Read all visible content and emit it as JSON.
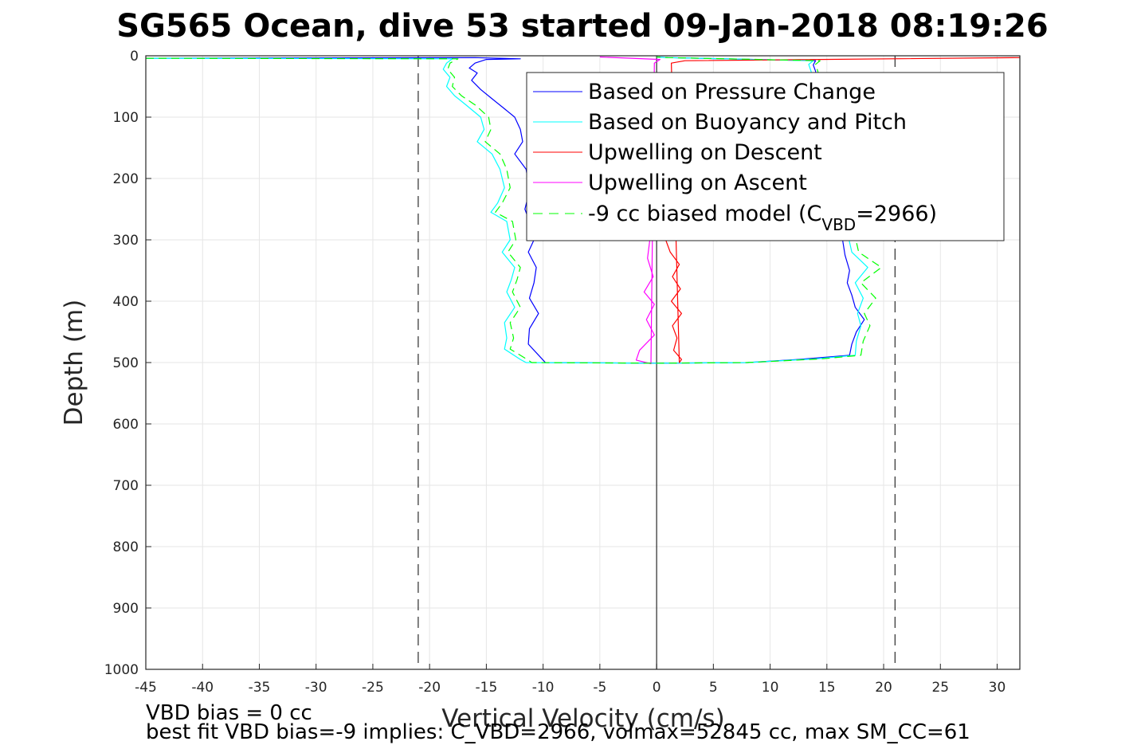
{
  "chart_data": {
    "type": "line",
    "title": "SG565 Ocean, dive 53 started 09-Jan-2018 08:19:26",
    "xlabel": "Vertical Velocity (cm/s)",
    "ylabel": "Depth (m)",
    "xlim": [
      -45,
      32
    ],
    "ylim": [
      1000,
      0
    ],
    "y_reversed": true,
    "grid": true,
    "xticks": [
      -45,
      -40,
      -35,
      -30,
      -25,
      -20,
      -15,
      -10,
      -5,
      0,
      5,
      10,
      15,
      20,
      25,
      30
    ],
    "yticks": [
      0,
      100,
      200,
      300,
      400,
      500,
      600,
      700,
      800,
      900,
      1000
    ],
    "xtick_labels": [
      "-45",
      "-40",
      "-35",
      "-30",
      "-25",
      "-20",
      "-15",
      "-10",
      "-5",
      "0",
      "5",
      "10",
      "15",
      "20",
      "25",
      "30"
    ],
    "ytick_labels": [
      "0",
      "100",
      "200",
      "300",
      "400",
      "500",
      "600",
      "700",
      "800",
      "900",
      "1000"
    ],
    "legend_position": "top-right",
    "reference_lines": {
      "vertical_dashed_x": [
        -21,
        21
      ],
      "vertical_solid_x": [
        0
      ],
      "color": "#000000"
    },
    "series": [
      {
        "name": "Based on Pressure Change",
        "color": "#0000ff",
        "style": "solid",
        "points": [
          [
            -45,
            4
          ],
          [
            -16,
            3
          ],
          [
            -12,
            5
          ],
          [
            -15,
            6
          ],
          [
            -16,
            12
          ],
          [
            -16.5,
            20
          ],
          [
            -15.8,
            28
          ],
          [
            -16.3,
            40
          ],
          [
            -15.5,
            55
          ],
          [
            -14.5,
            70
          ],
          [
            -13.5,
            85
          ],
          [
            -12.5,
            100
          ],
          [
            -12,
            120
          ],
          [
            -11.8,
            140
          ],
          [
            -12.5,
            160
          ],
          [
            -11.5,
            185
          ],
          [
            -11.2,
            220
          ],
          [
            -11.6,
            250
          ],
          [
            -11.2,
            270
          ],
          [
            -10.8,
            300
          ],
          [
            -11.3,
            320
          ],
          [
            -10.6,
            345
          ],
          [
            -10.8,
            370
          ],
          [
            -11.2,
            395
          ],
          [
            -10.4,
            420
          ],
          [
            -11.2,
            445
          ],
          [
            -11.3,
            470
          ],
          [
            -10.2,
            492
          ],
          [
            -9.8,
            500
          ],
          [
            0,
            501
          ],
          [
            8,
            500
          ],
          [
            12.5,
            495
          ],
          [
            17,
            488
          ],
          [
            17.2,
            470
          ],
          [
            17.6,
            450
          ],
          [
            18.3,
            430
          ],
          [
            17.5,
            410
          ],
          [
            17.2,
            390
          ],
          [
            16.8,
            370
          ],
          [
            17.0,
            350
          ],
          [
            16.6,
            325
          ],
          [
            14,
            25
          ],
          [
            13.8,
            15
          ],
          [
            14,
            8
          ],
          [
            1,
            3
          ],
          [
            0,
            2
          ]
        ]
      },
      {
        "name": "Based on Buoyancy and Pitch",
        "color": "#00ffff",
        "style": "solid",
        "points": [
          [
            -45,
            4
          ],
          [
            -18,
            5
          ],
          [
            -18.5,
            12
          ],
          [
            -18.8,
            22
          ],
          [
            -18.2,
            35
          ],
          [
            -18.5,
            50
          ],
          [
            -17.8,
            65
          ],
          [
            -16.8,
            80
          ],
          [
            -15.5,
            100
          ],
          [
            -15.2,
            120
          ],
          [
            -15.8,
            140
          ],
          [
            -14.5,
            160
          ],
          [
            -13.8,
            185
          ],
          [
            -13.4,
            215
          ],
          [
            -14.0,
            240
          ],
          [
            -14.6,
            255
          ],
          [
            -13.2,
            270
          ],
          [
            -12.9,
            300
          ],
          [
            -13.6,
            320
          ],
          [
            -12.5,
            345
          ],
          [
            -12.8,
            365
          ],
          [
            -13.2,
            385
          ],
          [
            -12.5,
            410
          ],
          [
            -13.4,
            435
          ],
          [
            -13.2,
            460
          ],
          [
            -13.4,
            478
          ],
          [
            -12.0,
            495
          ],
          [
            -11.5,
            500
          ],
          [
            0,
            501
          ],
          [
            8,
            500
          ],
          [
            14,
            494
          ],
          [
            17.5,
            488
          ],
          [
            17.6,
            465
          ],
          [
            18.0,
            440
          ],
          [
            17.7,
            420
          ],
          [
            18.2,
            395
          ],
          [
            17.5,
            370
          ],
          [
            18.6,
            345
          ],
          [
            17.2,
            320
          ],
          [
            13.6,
            25
          ],
          [
            13.4,
            14
          ],
          [
            13.8,
            8
          ],
          [
            1,
            3
          ],
          [
            0,
            2
          ]
        ]
      },
      {
        "name": "Upwelling on Descent",
        "color": "#ff0000",
        "style": "solid",
        "points": [
          [
            0.8,
            300
          ],
          [
            1.2,
            320
          ],
          [
            2.0,
            340
          ],
          [
            1.4,
            360
          ],
          [
            2.1,
            380
          ],
          [
            1.3,
            400
          ],
          [
            2.2,
            420
          ],
          [
            1.4,
            440
          ],
          [
            1.8,
            460
          ],
          [
            1.5,
            480
          ],
          [
            2.2,
            495
          ],
          [
            2.0,
            500
          ],
          [
            1.3,
            12
          ],
          [
            2.5,
            8
          ],
          [
            32,
            3
          ]
        ]
      },
      {
        "name": "Upwelling on Ascent",
        "color": "#ff00ff",
        "style": "solid",
        "points": [
          [
            -0.6,
            300
          ],
          [
            -0.8,
            330
          ],
          [
            -0.3,
            360
          ],
          [
            -1.1,
            385
          ],
          [
            -0.2,
            405
          ],
          [
            -0.9,
            430
          ],
          [
            -0.2,
            455
          ],
          [
            -1.5,
            480
          ],
          [
            -1.8,
            496
          ],
          [
            -0.5,
            502
          ],
          [
            -0.2,
            12
          ],
          [
            0.3,
            6
          ],
          [
            -5,
            2
          ]
        ]
      },
      {
        "name": "-9 cc biased model (C_VBD=2966)",
        "color": "#00ff00",
        "style": "dashed",
        "points": [
          [
            -45,
            4
          ],
          [
            -17.5,
            5
          ],
          [
            -18.2,
            12
          ],
          [
            -18.4,
            22
          ],
          [
            -17.8,
            35
          ],
          [
            -18.0,
            50
          ],
          [
            -17.2,
            65
          ],
          [
            -16.0,
            80
          ],
          [
            -14.8,
            100
          ],
          [
            -14.6,
            120
          ],
          [
            -15.1,
            140
          ],
          [
            -13.8,
            160
          ],
          [
            -13.2,
            185
          ],
          [
            -12.9,
            215
          ],
          [
            -13.6,
            240
          ],
          [
            -14.2,
            255
          ],
          [
            -12.7,
            270
          ],
          [
            -12.4,
            300
          ],
          [
            -13.1,
            320
          ],
          [
            -12.0,
            345
          ],
          [
            -12.3,
            365
          ],
          [
            -12.7,
            385
          ],
          [
            -12.0,
            410
          ],
          [
            -12.9,
            435
          ],
          [
            -12.6,
            460
          ],
          [
            -12.9,
            478
          ],
          [
            -11.4,
            495
          ],
          [
            -11.0,
            500
          ],
          [
            0,
            501
          ],
          [
            8,
            500
          ],
          [
            14.5,
            494
          ],
          [
            18.0,
            488
          ],
          [
            18.2,
            465
          ],
          [
            18.8,
            440
          ],
          [
            18.3,
            420
          ],
          [
            19.3,
            395
          ],
          [
            18.0,
            370
          ],
          [
            19.8,
            345
          ],
          [
            17.8,
            320
          ],
          [
            14.2,
            25
          ],
          [
            14.0,
            14
          ],
          [
            14.4,
            8
          ],
          [
            1,
            3
          ],
          [
            0,
            2
          ]
        ]
      }
    ]
  },
  "legend": {
    "items": [
      {
        "label": "Based on Pressure Change",
        "color": "#0000ff",
        "dash": false
      },
      {
        "label": "Based on Buoyancy and Pitch",
        "color": "#00ffff",
        "dash": false
      },
      {
        "label": "Upwelling on Descent",
        "color": "#ff0000",
        "dash": false
      },
      {
        "label": "Upwelling on Ascent",
        "color": "#ff00ff",
        "dash": false
      }
    ],
    "model_item": {
      "prefix": "-9 cc biased model (C",
      "subscript": "VBD",
      "suffix": "=2966)",
      "color": "#00ff00",
      "dash": true
    }
  },
  "footer": {
    "line1": "VBD bias = 0 cc",
    "line2": "best fit VBD bias=-9 implies: C_VBD=2966, volmax=52845 cc, max SM_CC=61"
  }
}
